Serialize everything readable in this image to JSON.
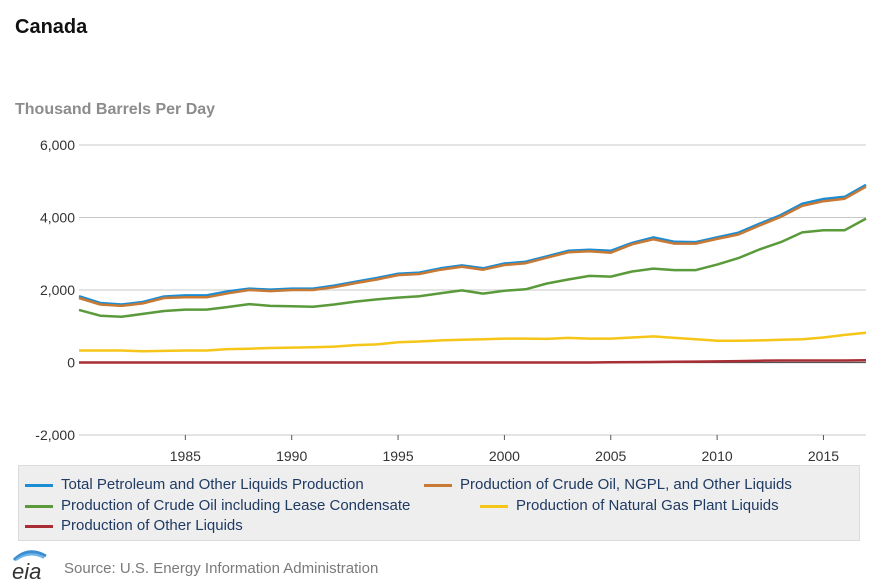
{
  "title": "Canada",
  "units_label": "Thousand Barrels Per Day",
  "source": "Source: U.S. Energy Information Administration",
  "logo_text": "eia",
  "chart_data": {
    "type": "line",
    "title": "Canada",
    "ylabel": "Thousand Barrels Per Day",
    "xlabel": "",
    "x": [
      1980,
      1981,
      1982,
      1983,
      1984,
      1985,
      1986,
      1987,
      1988,
      1989,
      1990,
      1991,
      1992,
      1993,
      1994,
      1995,
      1996,
      1997,
      1998,
      1999,
      2000,
      2001,
      2002,
      2003,
      2004,
      2005,
      2006,
      2007,
      2008,
      2009,
      2010,
      2011,
      2012,
      2013,
      2014,
      2015,
      2016,
      2017
    ],
    "xlim": [
      1980,
      2017
    ],
    "ylim": [
      -2000,
      6000
    ],
    "x_ticks": [
      "1985",
      "1990",
      "1995",
      "2000",
      "2005",
      "2010",
      "2015"
    ],
    "y_ticks": [
      "6,000",
      "4,000",
      "2,000",
      "0",
      "-2,000"
    ],
    "grid": true,
    "legend_position": "bottom",
    "series": [
      {
        "name": "Total Petroleum and Other Liquids Production",
        "color": "#1c8cd3",
        "values": [
          1830,
          1640,
          1600,
          1670,
          1820,
          1850,
          1850,
          1960,
          2040,
          2010,
          2040,
          2040,
          2120,
          2230,
          2330,
          2450,
          2480,
          2600,
          2680,
          2600,
          2730,
          2780,
          2930,
          3080,
          3110,
          3080,
          3300,
          3450,
          3330,
          3320,
          3450,
          3580,
          3830,
          4070,
          4380,
          4510,
          4570,
          4900
        ]
      },
      {
        "name": "Production of Crude Oil, NGPL, and Other Liquids",
        "color": "#c87a35",
        "values": [
          1780,
          1600,
          1560,
          1630,
          1780,
          1800,
          1800,
          1910,
          2000,
          1970,
          2000,
          2000,
          2080,
          2190,
          2290,
          2410,
          2440,
          2560,
          2640,
          2560,
          2690,
          2740,
          2890,
          3040,
          3070,
          3030,
          3260,
          3400,
          3280,
          3280,
          3410,
          3530,
          3780,
          4020,
          4320,
          4450,
          4520,
          4850
        ]
      },
      {
        "name": "Production of Crude Oil including Lease Condensate",
        "color": "#5a9a3a",
        "values": [
          1450,
          1290,
          1260,
          1340,
          1420,
          1460,
          1460,
          1530,
          1610,
          1560,
          1550,
          1540,
          1600,
          1680,
          1740,
          1790,
          1830,
          1910,
          1990,
          1900,
          1980,
          2020,
          2180,
          2290,
          2390,
          2370,
          2510,
          2590,
          2550,
          2550,
          2700,
          2880,
          3120,
          3320,
          3590,
          3650,
          3650,
          3970
        ]
      },
      {
        "name": "Production of Natural Gas Plant Liquids",
        "color": "#f5c518",
        "values": [
          330,
          330,
          330,
          310,
          320,
          330,
          330,
          370,
          380,
          400,
          410,
          420,
          440,
          480,
          500,
          560,
          580,
          610,
          630,
          640,
          660,
          660,
          650,
          680,
          660,
          660,
          690,
          720,
          680,
          640,
          600,
          600,
          610,
          630,
          640,
          690,
          760,
          820
        ]
      },
      {
        "name": "Production of Other Liquids",
        "color": "#a82e36",
        "values": [
          0,
          0,
          0,
          0,
          0,
          0,
          0,
          0,
          0,
          0,
          0,
          0,
          0,
          0,
          0,
          0,
          0,
          0,
          0,
          0,
          0,
          0,
          0,
          0,
          0,
          5,
          10,
          15,
          20,
          25,
          30,
          40,
          50,
          55,
          55,
          55,
          55,
          60
        ]
      }
    ]
  }
}
